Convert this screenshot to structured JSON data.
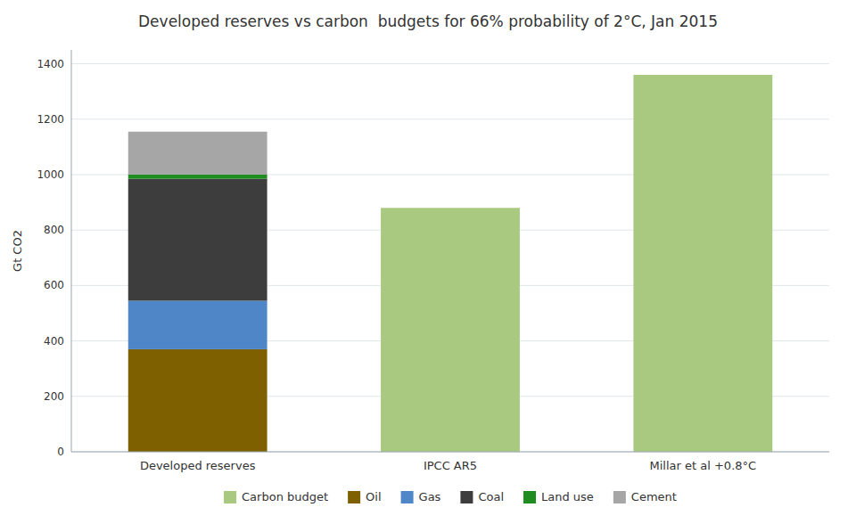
{
  "chart_data": {
    "type": "bar",
    "stacked": true,
    "title": "Developed reserves vs carbon  budgets for 66% probability of 2°C, Jan 2015",
    "ylabel": "Gt CO2",
    "categories": [
      "Developed reserves",
      "IPCC AR5",
      "Millar et al +0.8°C"
    ],
    "series": [
      {
        "name": "Carbon budget",
        "color": "#a8c97f",
        "values": [
          0,
          880,
          1360
        ]
      },
      {
        "name": "Oil",
        "color": "#7f6000",
        "values": [
          370,
          0,
          0
        ]
      },
      {
        "name": "Gas",
        "color": "#4e86c8",
        "values": [
          175,
          0,
          0
        ]
      },
      {
        "name": "Coal",
        "color": "#3d3d3d",
        "values": [
          440,
          0,
          0
        ]
      },
      {
        "name": "Land use",
        "color": "#1f8c1f",
        "values": [
          15,
          0,
          0
        ]
      },
      {
        "name": "Cement",
        "color": "#a6a6a6",
        "values": [
          155,
          0,
          0
        ]
      }
    ],
    "ylim": [
      0,
      1450
    ],
    "yticks": [
      0,
      200,
      400,
      600,
      800,
      1000,
      1200,
      1400
    ],
    "grid": true,
    "legend": "bottom"
  }
}
